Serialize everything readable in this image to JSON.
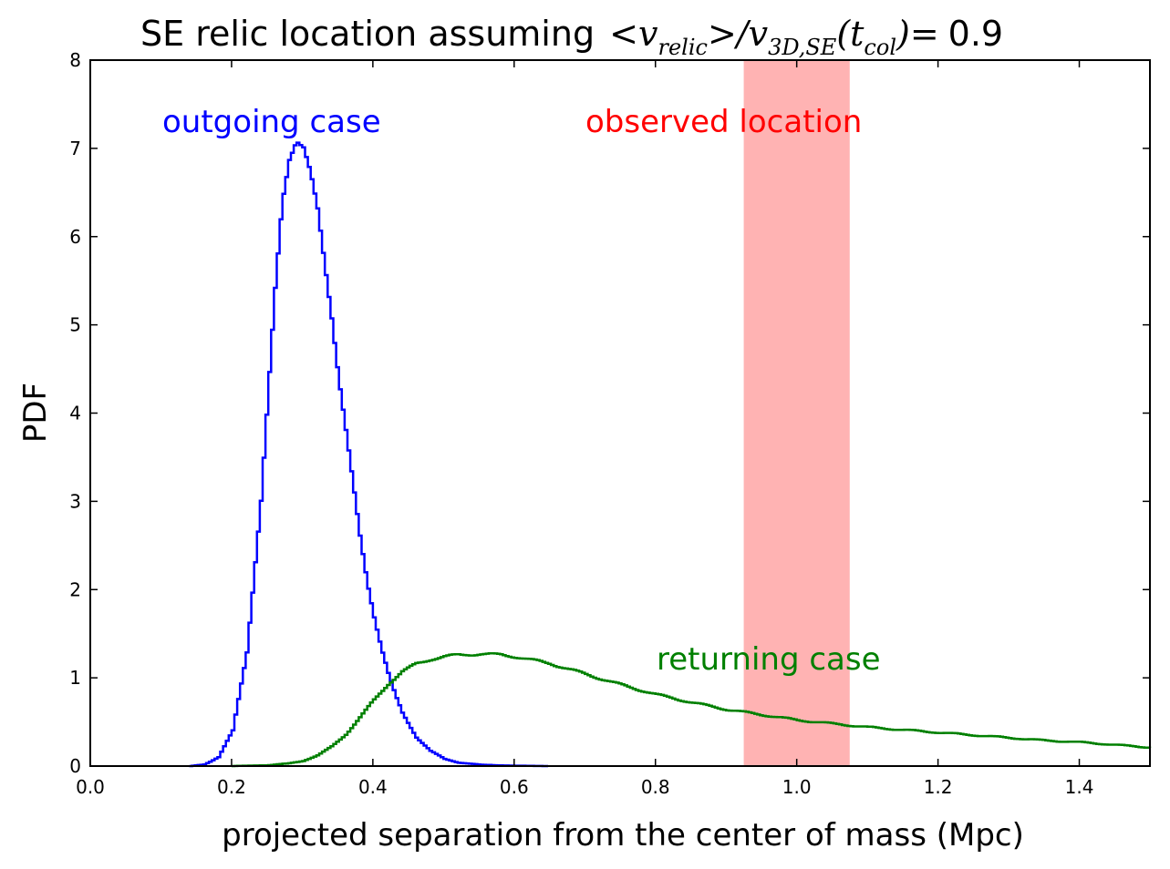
{
  "chart_data": {
    "type": "line",
    "title": "SE relic location assuming <v_relic>/v_3D,SE(t_col) = 0.9",
    "title_parts": {
      "lead": "SE relic location assuming ",
      "lt": "<",
      "v": "v",
      "relic_sub": "relic",
      "gt_slash": ">/",
      "v2": "v",
      "se_sub": "3D,SE",
      "lparen": "(",
      "t": "t",
      "col_sub": "col",
      "rparen_eq": ")=",
      "value": "0.9"
    },
    "xlabel": "projected separation from the center of mass (Mpc)",
    "ylabel": "PDF",
    "xlim": [
      0.0,
      1.5
    ],
    "ylim": [
      0,
      8
    ],
    "x_ticks": [
      "0.0",
      "0.2",
      "0.4",
      "0.6",
      "0.8",
      "1.0",
      "1.2",
      "1.4"
    ],
    "y_ticks": [
      "0",
      "1",
      "2",
      "3",
      "4",
      "5",
      "6",
      "7",
      "8"
    ],
    "grid": false,
    "shaded_region": {
      "label": "observed location",
      "x_range": [
        0.925,
        1.075
      ],
      "color": "#ffb3b3",
      "label_color": "#ff0000"
    },
    "annotations": [
      {
        "text": "outgoing case",
        "color": "#0000ff"
      },
      {
        "text": "observed location",
        "color": "#ff0000"
      },
      {
        "text": "returning case",
        "color": "#008000"
      }
    ],
    "series": [
      {
        "name": "outgoing case",
        "color": "#0000ff",
        "step": true,
        "x": [
          0.14,
          0.16,
          0.18,
          0.2,
          0.22,
          0.24,
          0.25,
          0.26,
          0.27,
          0.28,
          0.29,
          0.3,
          0.31,
          0.32,
          0.33,
          0.34,
          0.35,
          0.36,
          0.37,
          0.38,
          0.39,
          0.4,
          0.41,
          0.42,
          0.43,
          0.44,
          0.46,
          0.48,
          0.5,
          0.52,
          0.55,
          0.6,
          0.65
        ],
        "y": [
          0.0,
          0.02,
          0.1,
          0.4,
          1.3,
          3.0,
          4.2,
          5.4,
          6.4,
          6.9,
          7.1,
          7.0,
          6.7,
          6.3,
          5.7,
          5.1,
          4.4,
          3.8,
          3.2,
          2.6,
          2.1,
          1.7,
          1.35,
          1.05,
          0.8,
          0.6,
          0.33,
          0.17,
          0.08,
          0.04,
          0.015,
          0.004,
          0.0
        ]
      },
      {
        "name": "returning case",
        "color": "#008000",
        "step": true,
        "x": [
          0.2,
          0.25,
          0.28,
          0.3,
          0.32,
          0.34,
          0.36,
          0.38,
          0.4,
          0.42,
          0.44,
          0.46,
          0.48,
          0.5,
          0.52,
          0.55,
          0.58,
          0.6,
          0.65,
          0.7,
          0.75,
          0.8,
          0.85,
          0.9,
          0.95,
          1.0,
          1.05,
          1.1,
          1.15,
          1.2,
          1.25,
          1.3,
          1.35,
          1.4,
          1.45,
          1.5
        ],
        "y": [
          0.0,
          0.01,
          0.03,
          0.06,
          0.12,
          0.22,
          0.36,
          0.55,
          0.75,
          0.93,
          1.07,
          1.16,
          1.21,
          1.24,
          1.26,
          1.27,
          1.26,
          1.24,
          1.16,
          1.04,
          0.92,
          0.81,
          0.72,
          0.64,
          0.58,
          0.52,
          0.48,
          0.44,
          0.41,
          0.38,
          0.35,
          0.32,
          0.29,
          0.27,
          0.24,
          0.21
        ]
      }
    ]
  }
}
